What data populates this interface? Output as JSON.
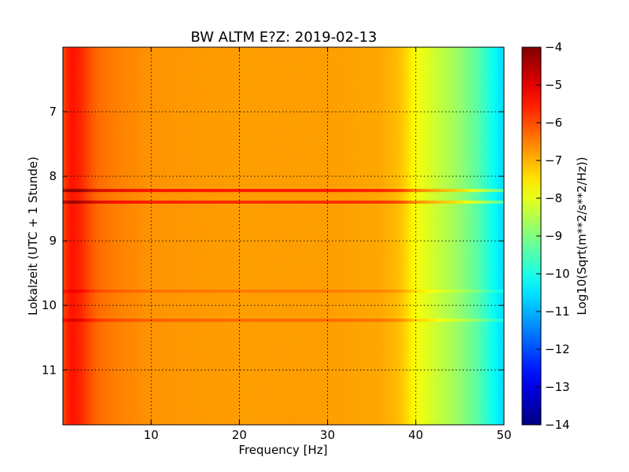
{
  "chart_data": {
    "type": "heatmap",
    "title": "BW ALTM E?Z: 2019-02-13",
    "xlabel": "Frequency [Hz]",
    "ylabel": "Lokalzeit (UTC + 1 Stunde)",
    "xlim": [
      0,
      50
    ],
    "ylim": [
      11.85,
      6.0
    ],
    "y_inverted": true,
    "x_ticks": [
      10,
      20,
      30,
      40,
      50
    ],
    "y_ticks": [
      7,
      8,
      9,
      10,
      11
    ],
    "grid": true,
    "colormap": "jet",
    "colorbar": {
      "label": "Log10(Sqrt(m**2/s**2/Hz))",
      "range": [
        -14,
        -4
      ],
      "ticks": [
        -4,
        -5,
        -6,
        -7,
        -8,
        -9,
        -10,
        -11,
        -12,
        -13,
        -14
      ],
      "tick_labels": [
        "−4",
        "−5",
        "−6",
        "−7",
        "−8",
        "−9",
        "−10",
        "−11",
        "−12",
        "−13",
        "−14"
      ]
    },
    "level_profile": {
      "frequency_hz": [
        0,
        0.5,
        1,
        2,
        3,
        4,
        6,
        10,
        20,
        30,
        36,
        38,
        39,
        40,
        41,
        42,
        43,
        44,
        45,
        46,
        47,
        48,
        49,
        50
      ],
      "log10_amplitude": [
        -6.0,
        -5.6,
        -5.4,
        -5.6,
        -6.0,
        -6.3,
        -6.5,
        -6.7,
        -6.8,
        -6.8,
        -6.9,
        -7.1,
        -7.4,
        -7.8,
        -8.0,
        -8.2,
        -8.4,
        -8.6,
        -8.8,
        -9.1,
        -9.4,
        -9.8,
        -10.3,
        -10.6
      ]
    },
    "horizontal_bands": [
      {
        "time": 8.22,
        "log10_amplitude": -5.3
      },
      {
        "time": 8.4,
        "log10_amplitude": -5.5
      },
      {
        "time": 9.78,
        "log10_amplitude": -6.4
      },
      {
        "time": 10.23,
        "log10_amplitude": -6.2
      }
    ]
  }
}
